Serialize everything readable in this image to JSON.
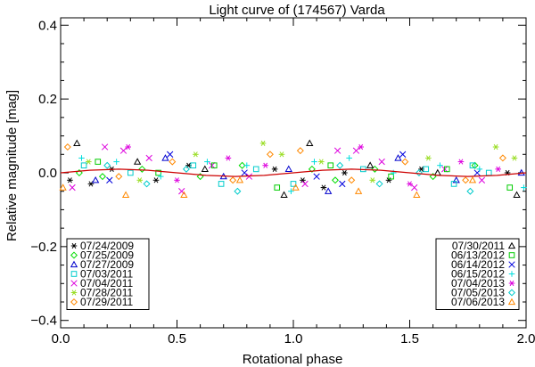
{
  "chart_data": {
    "type": "scatter",
    "title": "Light curve of (174567) Varda",
    "xlabel": "Rotational phase",
    "ylabel": "Relative magnitude [mag]",
    "xlim": [
      0.0,
      2.0
    ],
    "ylim": [
      -0.42,
      0.42
    ],
    "x_ticks": [
      0.0,
      0.5,
      1.0,
      1.5,
      2.0
    ],
    "x_tick_labels": [
      "0.0",
      "0.5",
      "1.0",
      "1.5",
      "2.0"
    ],
    "y_ticks": [
      -0.4,
      -0.2,
      0.0,
      0.2,
      0.4
    ],
    "y_tick_labels": [
      "−0.4",
      "−0.2",
      "0.0",
      "0.2",
      "0.4"
    ],
    "grid": false,
    "fit_curve": {
      "name": "fit",
      "color": "#cc0000",
      "amplitude": 0.01,
      "points": [
        [
          0.0,
          0.0
        ],
        [
          0.125,
          0.0071
        ],
        [
          0.25,
          0.01
        ],
        [
          0.375,
          0.0071
        ],
        [
          0.5,
          0.0
        ],
        [
          0.625,
          -0.0071
        ],
        [
          0.75,
          -0.01
        ],
        [
          0.875,
          -0.0071
        ],
        [
          1.0,
          0.0
        ],
        [
          1.125,
          0.0071
        ],
        [
          1.25,
          0.01
        ],
        [
          1.375,
          0.0071
        ],
        [
          1.5,
          0.0
        ],
        [
          1.625,
          -0.0071
        ],
        [
          1.75,
          -0.01
        ],
        [
          1.875,
          -0.0071
        ],
        [
          2.0,
          0.0
        ]
      ]
    },
    "legend_left": {
      "placement": "bottom-left",
      "entries": [
        "07/24/2009",
        "07/25/2009",
        "07/27/2009",
        "07/03/2011",
        "07/04/2011",
        "07/28/2011",
        "07/29/2011"
      ]
    },
    "legend_right": {
      "placement": "bottom-right",
      "entries": [
        "07/30/2011",
        "06/13/2012",
        "06/14/2012",
        "06/15/2012",
        "07/04/2013",
        "07/05/2013",
        "07/06/2013"
      ]
    },
    "series": [
      {
        "name": "07/24/2009",
        "marker": "asterisk",
        "color": "#000000",
        "points": [
          [
            0.04,
            -0.02
          ],
          [
            0.13,
            -0.03
          ],
          [
            0.22,
            0.01
          ],
          [
            0.41,
            -0.02
          ],
          [
            0.55,
            0.02
          ],
          [
            0.92,
            0.01
          ],
          [
            1.04,
            -0.02
          ],
          [
            1.13,
            -0.04
          ],
          [
            1.22,
            0.0
          ],
          [
            1.41,
            -0.02
          ],
          [
            1.55,
            0.01
          ],
          [
            1.92,
            0.0
          ]
        ]
      },
      {
        "name": "07/25/2009",
        "marker": "diamond",
        "color": "#00dd00",
        "points": [
          [
            0.08,
            0.0
          ],
          [
            0.18,
            -0.01
          ],
          [
            0.35,
            0.01
          ],
          [
            0.6,
            -0.01
          ],
          [
            0.78,
            0.02
          ],
          [
            1.08,
            0.01
          ],
          [
            1.18,
            -0.02
          ],
          [
            1.35,
            0.01
          ],
          [
            1.6,
            -0.01
          ],
          [
            1.78,
            0.02
          ]
        ]
      },
      {
        "name": "07/27/2009",
        "marker": "triangle",
        "color": "#0000cc",
        "points": [
          [
            0.15,
            -0.02
          ],
          [
            0.45,
            0.04
          ],
          [
            0.7,
            -0.01
          ],
          [
            0.98,
            0.01
          ],
          [
            1.15,
            -0.05
          ],
          [
            1.45,
            0.04
          ],
          [
            1.7,
            -0.02
          ],
          [
            1.98,
            0.0
          ]
        ]
      },
      {
        "name": "07/03/2011",
        "marker": "square",
        "color": "#00cccc",
        "points": [
          [
            0.1,
            0.02
          ],
          [
            0.3,
            0.0
          ],
          [
            0.57,
            0.02
          ],
          [
            0.69,
            -0.03
          ],
          [
            0.84,
            0.01
          ],
          [
            1.0,
            -0.03
          ],
          [
            1.3,
            0.01
          ],
          [
            1.57,
            0.01
          ],
          [
            1.69,
            -0.03
          ],
          [
            1.77,
            0.02
          ],
          [
            1.84,
            0.0
          ]
        ]
      },
      {
        "name": "07/04/2011",
        "marker": "cross",
        "color": "#dd00dd",
        "points": [
          [
            0.05,
            -0.04
          ],
          [
            0.19,
            0.07
          ],
          [
            0.27,
            0.06
          ],
          [
            0.38,
            0.04
          ],
          [
            0.52,
            -0.05
          ],
          [
            0.65,
            0.02
          ],
          [
            0.81,
            -0.01
          ],
          [
            1.05,
            -0.03
          ],
          [
            1.19,
            0.06
          ],
          [
            1.27,
            0.06
          ],
          [
            1.38,
            0.03
          ],
          [
            1.52,
            -0.04
          ],
          [
            1.65,
            0.01
          ],
          [
            1.81,
            -0.02
          ]
        ]
      },
      {
        "name": "07/28/2011",
        "marker": "asterisk",
        "color": "#99dd22",
        "points": [
          [
            0.12,
            0.03
          ],
          [
            0.34,
            -0.02
          ],
          [
            0.58,
            0.05
          ],
          [
            0.87,
            0.08
          ],
          [
            0.95,
            0.05
          ],
          [
            1.12,
            0.03
          ],
          [
            1.34,
            -0.02
          ],
          [
            1.58,
            0.04
          ],
          [
            1.87,
            0.07
          ],
          [
            1.95,
            0.04
          ]
        ]
      },
      {
        "name": "07/29/2011",
        "marker": "diamond",
        "color": "#ff8800",
        "points": [
          [
            0.03,
            0.07
          ],
          [
            0.25,
            -0.01
          ],
          [
            0.48,
            0.03
          ],
          [
            0.74,
            -0.02
          ],
          [
            0.9,
            0.05
          ],
          [
            1.03,
            0.06
          ],
          [
            1.25,
            -0.02
          ],
          [
            1.48,
            0.03
          ],
          [
            1.74,
            -0.02
          ],
          [
            1.9,
            0.04
          ]
        ]
      },
      {
        "name": "07/30/2011",
        "marker": "triangle",
        "color": "#000000",
        "points": [
          [
            0.07,
            0.08
          ],
          [
            0.33,
            0.03
          ],
          [
            0.62,
            0.01
          ],
          [
            0.96,
            -0.06
          ],
          [
            1.07,
            0.08
          ],
          [
            1.33,
            0.02
          ],
          [
            1.62,
            0.0
          ],
          [
            1.96,
            -0.06
          ]
        ]
      },
      {
        "name": "06/13/2012",
        "marker": "square",
        "color": "#00cc00",
        "points": [
          [
            0.16,
            0.03
          ],
          [
            0.42,
            0.0
          ],
          [
            0.66,
            0.02
          ],
          [
            0.93,
            -0.04
          ],
          [
            1.16,
            0.02
          ],
          [
            1.42,
            -0.01
          ],
          [
            1.66,
            0.01
          ],
          [
            1.93,
            -0.04
          ]
        ]
      },
      {
        "name": "06/14/2012",
        "marker": "cross",
        "color": "#0000dd",
        "points": [
          [
            0.21,
            -0.02
          ],
          [
            0.47,
            0.05
          ],
          [
            0.79,
            0.0
          ],
          [
            1.1,
            -0.01
          ],
          [
            1.21,
            -0.03
          ],
          [
            1.47,
            0.05
          ],
          [
            1.79,
            0.0
          ]
        ]
      },
      {
        "name": "06/15/2012",
        "marker": "plus",
        "color": "#00dddd",
        "points": [
          [
            0.09,
            0.04
          ],
          [
            0.24,
            0.03
          ],
          [
            0.43,
            -0.01
          ],
          [
            0.63,
            0.03
          ],
          [
            0.8,
            0.02
          ],
          [
            0.99,
            -0.05
          ],
          [
            1.09,
            0.03
          ],
          [
            1.24,
            0.04
          ],
          [
            1.43,
            0.0
          ],
          [
            1.63,
            0.02
          ],
          [
            1.8,
            0.01
          ],
          [
            1.99,
            -0.04
          ]
        ]
      },
      {
        "name": "07/04/2013",
        "marker": "asterisk",
        "color": "#dd00dd",
        "points": [
          [
            0.29,
            0.07
          ],
          [
            0.5,
            -0.02
          ],
          [
            0.72,
            0.04
          ],
          [
            0.88,
            0.02
          ],
          [
            1.29,
            0.07
          ],
          [
            1.5,
            -0.03
          ],
          [
            1.72,
            0.03
          ],
          [
            1.88,
            0.01
          ]
        ]
      },
      {
        "name": "07/05/2013",
        "marker": "diamond",
        "color": "#00cccc",
        "points": [
          [
            0.2,
            0.02
          ],
          [
            0.37,
            -0.03
          ],
          [
            0.54,
            0.01
          ],
          [
            0.76,
            -0.05
          ],
          [
            1.2,
            0.02
          ],
          [
            1.37,
            -0.03
          ],
          [
            1.54,
            0.0
          ],
          [
            1.76,
            -0.05
          ]
        ]
      },
      {
        "name": "07/06/2013",
        "marker": "triangle",
        "color": "#ff8800",
        "points": [
          [
            0.01,
            -0.04
          ],
          [
            0.28,
            -0.06
          ],
          [
            0.53,
            -0.06
          ],
          [
            0.77,
            -0.02
          ],
          [
            1.01,
            -0.04
          ],
          [
            1.28,
            -0.05
          ],
          [
            1.53,
            -0.06
          ],
          [
            1.77,
            -0.02
          ]
        ]
      }
    ]
  }
}
